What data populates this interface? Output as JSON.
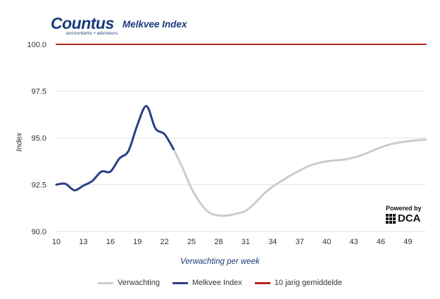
{
  "brand": {
    "name": "Countus",
    "tagline": "accountants • adviseurs"
  },
  "powered": {
    "label": "Powered by",
    "name": "DCA"
  },
  "chart_data": {
    "type": "line",
    "title": "Melkvee Index",
    "xlabel": "Verwachting per week",
    "ylabel": "Index",
    "xlim": [
      10,
      51
    ],
    "ylim": [
      90,
      100
    ],
    "xticks": [
      "10",
      "13",
      "16",
      "19",
      "22",
      "25",
      "28",
      "31",
      "34",
      "37",
      "40",
      "43",
      "46",
      "49"
    ],
    "yticks": [
      "90.0",
      "92.5",
      "95.0",
      "97.5",
      "100.0"
    ],
    "grid": true,
    "legend_position": "bottom",
    "series": [
      {
        "name": "Verwachting",
        "color": "#cccccc",
        "x": [
          23,
          24,
          25,
          26,
          27,
          28,
          29,
          30,
          31,
          32,
          33,
          34,
          35,
          36,
          37,
          38,
          39,
          40,
          41,
          42,
          43,
          44,
          45,
          46,
          47,
          48,
          49,
          50,
          51
        ],
        "y": [
          94.4,
          93.4,
          92.3,
          91.5,
          91.0,
          90.85,
          90.85,
          90.95,
          91.1,
          91.5,
          92.0,
          92.4,
          92.7,
          93.0,
          93.25,
          93.5,
          93.65,
          93.75,
          93.8,
          93.85,
          93.95,
          94.1,
          94.3,
          94.5,
          94.65,
          94.75,
          94.82,
          94.87,
          94.92
        ]
      },
      {
        "name": "Melkvee Index",
        "color": "#2b3f86",
        "x": [
          10,
          11,
          12,
          13,
          14,
          15,
          16,
          17,
          18,
          19,
          20,
          21,
          22,
          23
        ],
        "y": [
          92.5,
          92.55,
          92.2,
          92.45,
          92.7,
          93.2,
          93.2,
          93.9,
          94.3,
          95.7,
          96.7,
          95.5,
          95.2,
          94.4
        ]
      },
      {
        "name": "10 jarig gemiddelde",
        "color": "#b22222",
        "x": [
          10,
          51
        ],
        "y": [
          100,
          100
        ]
      }
    ]
  }
}
